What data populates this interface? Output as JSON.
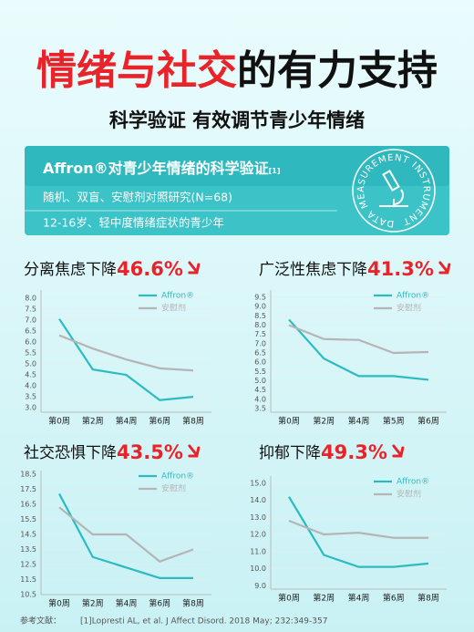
{
  "header": {
    "title": [
      "情绪与社交",
      "的有力支持"
    ],
    "subtitle": "科学验证 有效调节青少年情绪"
  },
  "study": {
    "heading": "Affron®对青少年情绪的科学验证",
    "ref_mark": "[1]",
    "design": "随机、双盲、安慰剂对照研究(N=68)",
    "population": "12-16岁、轻中度情绪症状的青少年",
    "emblem": "DATA MEASUREMENT INSTRUMENT"
  },
  "chart_data": [
    {
      "type": "line",
      "title": "分离焦虑下降",
      "highlight": "46.6%",
      "categories": [
        "第0周",
        "第2周",
        "第4周",
        "第6周",
        "第8周"
      ],
      "series": [
        {
          "name": "Affron®",
          "color": "#2bbcc2",
          "values": [
            7.05,
            4.75,
            4.5,
            3.35,
            3.5
          ]
        },
        {
          "name": "安慰剂",
          "color": "#b5b5b5",
          "values": [
            6.3,
            5.7,
            5.2,
            4.8,
            4.7
          ]
        }
      ],
      "ylim": [
        2.8,
        8.2
      ],
      "yticks": [
        {
          "value": 3,
          "label": "3.0"
        },
        3.5,
        {
          "value": 4,
          "label": "4.0"
        },
        4.5,
        {
          "value": 5,
          "label": "5.0"
        },
        5.5,
        {
          "value": 6,
          "label": "6.0"
        },
        6.5,
        {
          "value": 7,
          "label": "7.0"
        },
        7.5,
        {
          "value": 8,
          "label": "8.0"
        }
      ],
      "grid": true
    },
    {
      "type": "line",
      "title": "广泛性焦虑下降",
      "highlight": "41.3%",
      "categories": [
        "第0周",
        "第2周",
        "第4周",
        "第5周",
        "第6周"
      ],
      "series": [
        {
          "name": "Affron®",
          "color": "#2bbcc2",
          "values": [
            8.3,
            6.2,
            5.25,
            5.25,
            5.05
          ]
        },
        {
          "name": "安慰剂",
          "color": "#b5b5b5",
          "values": [
            8.0,
            7.25,
            7.2,
            6.5,
            6.55
          ]
        }
      ],
      "ylim": [
        3.3,
        9.7
      ],
      "yticks": [
        3.5,
        {
          "value": 4,
          "label": "4.0"
        },
        4.5,
        {
          "value": 5,
          "label": "5.0"
        },
        5.5,
        {
          "value": 6,
          "label": "6.0"
        },
        6.5,
        {
          "value": 7,
          "label": "7.0"
        },
        7.5,
        {
          "value": 8,
          "label": "8.0"
        },
        8.5,
        {
          "value": 9,
          "label": "9.0"
        },
        9.5
      ],
      "grid": true
    },
    {
      "type": "line",
      "title": "社交恐惧下降",
      "highlight": "43.5%",
      "categories": [
        "第0周",
        "第2周",
        "第4周",
        "第6周",
        "第8周"
      ],
      "series": [
        {
          "name": "Affron®",
          "color": "#2bbcc2",
          "values": [
            17.2,
            13.0,
            12.3,
            11.6,
            11.6
          ]
        },
        {
          "name": "安慰剂",
          "color": "#b5b5b5",
          "values": [
            16.3,
            14.5,
            14.5,
            12.7,
            13.5
          ]
        }
      ],
      "ylim": [
        10.5,
        18.5
      ],
      "yticks": [
        10.5,
        11.5,
        12.5,
        13.5,
        14.5,
        15.5,
        16.5,
        17.5,
        18.5
      ],
      "grid": true
    },
    {
      "type": "line",
      "title": "抑郁下降",
      "highlight": "49.3%",
      "categories": [
        "第0周",
        "第2周",
        "第4周",
        "第6周",
        "第8周"
      ],
      "series": [
        {
          "name": "Affron®",
          "color": "#2bbcc2",
          "values": [
            14.2,
            10.8,
            10.1,
            10.1,
            10.3
          ]
        },
        {
          "name": "安慰剂",
          "color": "#b5b5b5",
          "values": [
            12.8,
            12.0,
            12.1,
            11.8,
            11.8
          ]
        }
      ],
      "ylim": [
        8.8,
        15.2
      ],
      "yticks": [
        {
          "value": 9,
          "label": "9.0"
        },
        {
          "value": 10,
          "label": "10.0"
        },
        {
          "value": 11,
          "label": "11.0"
        },
        {
          "value": 12,
          "label": "12.0"
        },
        {
          "value": 13,
          "label": "13.0"
        },
        {
          "value": 14,
          "label": "14.0"
        },
        {
          "value": 15,
          "label": "15.0"
        }
      ],
      "grid": true
    }
  ],
  "footer": {
    "label": "参考文献：",
    "citation": "[1]Lopresti AL, et al. J Affect Disord. 2018 May; 232:349-357"
  }
}
